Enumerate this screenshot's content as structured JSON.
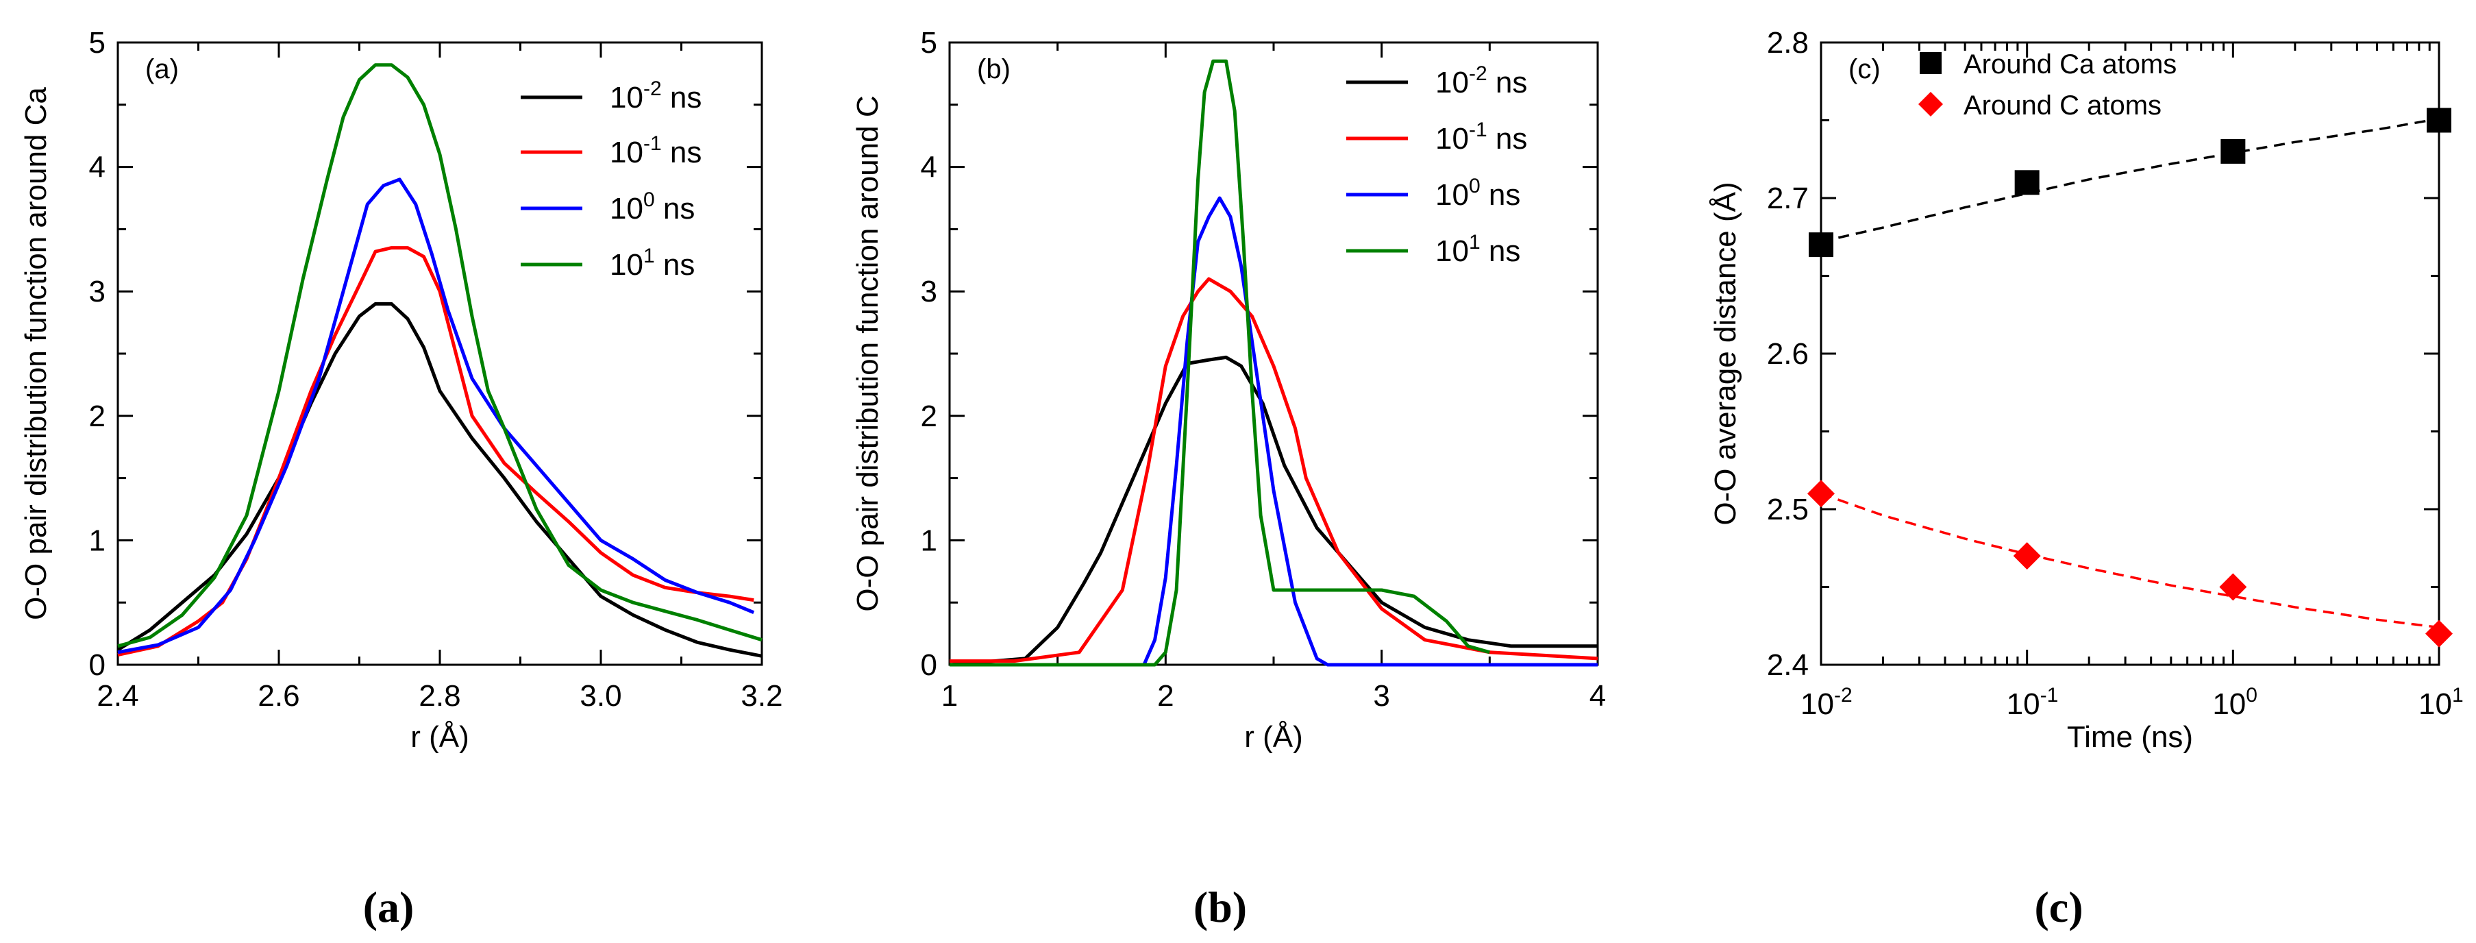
{
  "chart_data": [
    {
      "type": "line",
      "panel_label": "(a)",
      "caption": "(a)",
      "xlabel": "r (Å)",
      "ylabel": "O-O pair distribution function around Ca",
      "xlim": [
        2.4,
        3.2
      ],
      "ylim": [
        0,
        5
      ],
      "xticks": [
        2.4,
        2.6,
        2.8,
        3.0,
        3.2
      ],
      "xtick_labels": [
        "2.4",
        "2.6",
        "2.8",
        "3.0",
        "3.2"
      ],
      "yticks": [
        0,
        1,
        2,
        3,
        4,
        5
      ],
      "ytick_labels": [
        "0",
        "1",
        "2",
        "3",
        "4",
        "5"
      ],
      "legend": {
        "position": "top-right"
      },
      "series": [
        {
          "name": "10-2 ns",
          "base": "10",
          "exp": "-2",
          "unit": " ns",
          "color": "#000000",
          "x": [
            2.4,
            2.44,
            2.48,
            2.52,
            2.56,
            2.6,
            2.64,
            2.67,
            2.7,
            2.72,
            2.74,
            2.76,
            2.78,
            2.8,
            2.84,
            2.88,
            2.92,
            2.96,
            3.0,
            3.04,
            3.08,
            3.12,
            3.16,
            3.2
          ],
          "y": [
            0.12,
            0.28,
            0.5,
            0.72,
            1.05,
            1.5,
            2.1,
            2.5,
            2.8,
            2.9,
            2.9,
            2.78,
            2.55,
            2.2,
            1.82,
            1.5,
            1.15,
            0.85,
            0.55,
            0.4,
            0.28,
            0.18,
            0.12,
            0.07
          ]
        },
        {
          "name": "10-1 ns",
          "base": "10",
          "exp": "-1",
          "unit": " ns",
          "color": "#ff0000",
          "x": [
            2.4,
            2.45,
            2.5,
            2.53,
            2.56,
            2.6,
            2.64,
            2.67,
            2.7,
            2.72,
            2.74,
            2.76,
            2.78,
            2.8,
            2.82,
            2.84,
            2.88,
            2.92,
            2.96,
            3.0,
            3.04,
            3.08,
            3.12,
            3.16,
            3.19
          ],
          "y": [
            0.08,
            0.15,
            0.35,
            0.5,
            0.85,
            1.5,
            2.2,
            2.65,
            3.05,
            3.32,
            3.35,
            3.35,
            3.28,
            3.0,
            2.5,
            2.0,
            1.62,
            1.38,
            1.15,
            0.9,
            0.72,
            0.62,
            0.58,
            0.55,
            0.52
          ]
        },
        {
          "name": "100 ns",
          "base": "10",
          "exp": "0",
          "unit": " ns",
          "color": "#0000ff",
          "x": [
            2.4,
            2.45,
            2.5,
            2.54,
            2.57,
            2.61,
            2.65,
            2.68,
            2.71,
            2.73,
            2.75,
            2.77,
            2.79,
            2.81,
            2.84,
            2.88,
            2.92,
            2.96,
            3.0,
            3.04,
            3.08,
            3.12,
            3.16,
            3.19
          ],
          "y": [
            0.1,
            0.16,
            0.3,
            0.6,
            1.0,
            1.6,
            2.3,
            3.0,
            3.7,
            3.85,
            3.9,
            3.7,
            3.3,
            2.85,
            2.3,
            1.9,
            1.6,
            1.3,
            1.0,
            0.85,
            0.68,
            0.58,
            0.5,
            0.42
          ]
        },
        {
          "name": "101 ns",
          "base": "10",
          "exp": "1",
          "unit": " ns",
          "color": "#008000",
          "x": [
            2.4,
            2.44,
            2.48,
            2.52,
            2.56,
            2.6,
            2.63,
            2.66,
            2.68,
            2.7,
            2.72,
            2.74,
            2.76,
            2.78,
            2.8,
            2.82,
            2.84,
            2.86,
            2.88,
            2.92,
            2.96,
            3.0,
            3.04,
            3.08,
            3.12,
            3.16,
            3.2
          ],
          "y": [
            0.15,
            0.22,
            0.4,
            0.7,
            1.2,
            2.2,
            3.1,
            3.9,
            4.4,
            4.7,
            4.82,
            4.82,
            4.72,
            4.5,
            4.1,
            3.5,
            2.8,
            2.2,
            1.9,
            1.25,
            0.8,
            0.6,
            0.5,
            0.43,
            0.36,
            0.28,
            0.2
          ]
        }
      ]
    },
    {
      "type": "line",
      "panel_label": "(b)",
      "caption": "(b)",
      "xlabel": "r (Å)",
      "ylabel": "O-O pair distribution function around C",
      "xlim": [
        1,
        4
      ],
      "ylim": [
        0,
        5
      ],
      "xticks": [
        1,
        2,
        3,
        4
      ],
      "xtick_labels": [
        "1",
        "2",
        "3",
        "4"
      ],
      "yticks": [
        0,
        1,
        2,
        3,
        4,
        5
      ],
      "ytick_labels": [
        "0",
        "1",
        "2",
        "3",
        "4",
        "5"
      ],
      "legend": {
        "position": "top-right"
      },
      "series": [
        {
          "name": "10-2 ns",
          "base": "10",
          "exp": "-2",
          "unit": " ns",
          "color": "#000000",
          "x": [
            1.0,
            1.35,
            1.5,
            1.62,
            1.7,
            1.8,
            1.9,
            2.0,
            2.1,
            2.2,
            2.28,
            2.35,
            2.45,
            2.55,
            2.7,
            2.85,
            3.0,
            3.2,
            3.4,
            3.6,
            4.0
          ],
          "y": [
            0.0,
            0.05,
            0.3,
            0.65,
            0.9,
            1.3,
            1.7,
            2.1,
            2.42,
            2.45,
            2.47,
            2.4,
            2.1,
            1.6,
            1.1,
            0.8,
            0.5,
            0.3,
            0.2,
            0.15,
            0.15
          ]
        },
        {
          "name": "10-1 ns",
          "base": "10",
          "exp": "-1",
          "unit": " ns",
          "color": "#ff0000",
          "x": [
            1.0,
            1.3,
            1.6,
            1.8,
            1.92,
            2.0,
            2.08,
            2.15,
            2.2,
            2.3,
            2.4,
            2.5,
            2.6,
            2.65,
            2.8,
            3.0,
            3.2,
            3.5,
            4.0
          ],
          "y": [
            0.03,
            0.03,
            0.1,
            0.6,
            1.6,
            2.4,
            2.8,
            3.0,
            3.1,
            3.0,
            2.8,
            2.4,
            1.9,
            1.5,
            0.9,
            0.45,
            0.2,
            0.1,
            0.05
          ]
        },
        {
          "name": "100 ns",
          "base": "10",
          "exp": "0",
          "unit": " ns",
          "color": "#0000ff",
          "x": [
            1.0,
            1.9,
            1.95,
            2.0,
            2.05,
            2.1,
            2.15,
            2.2,
            2.25,
            2.3,
            2.35,
            2.4,
            2.5,
            2.6,
            2.7,
            2.75,
            4.0
          ],
          "y": [
            0.0,
            0.0,
            0.2,
            0.7,
            1.6,
            2.6,
            3.4,
            3.6,
            3.75,
            3.6,
            3.2,
            2.6,
            1.4,
            0.5,
            0.05,
            0.0,
            0.0
          ]
        },
        {
          "name": "101 ns",
          "base": "10",
          "exp": "1",
          "unit": " ns",
          "color": "#008000",
          "x": [
            1.0,
            1.95,
            2.0,
            2.05,
            2.1,
            2.15,
            2.18,
            2.22,
            2.28,
            2.32,
            2.36,
            2.4,
            2.44,
            2.5,
            2.6,
            2.8,
            3.0,
            3.15,
            3.3,
            3.4,
            3.5
          ],
          "y": [
            0.0,
            0.0,
            0.1,
            0.6,
            2.2,
            3.9,
            4.6,
            4.85,
            4.85,
            4.45,
            3.4,
            2.2,
            1.2,
            0.6,
            0.6,
            0.6,
            0.6,
            0.55,
            0.35,
            0.15,
            0.1
          ]
        }
      ]
    },
    {
      "type": "scatter",
      "panel_label": "(c)",
      "caption": "(c)",
      "xlabel": "Time (ns)",
      "ylabel": "O-O average distance (Å)",
      "xscale": "log",
      "xlim": [
        0.01,
        10
      ],
      "ylim": [
        2.4,
        2.8
      ],
      "xticks": [
        0.01,
        0.1,
        1,
        10
      ],
      "xtick_base": "10",
      "xtick_exps": [
        "-2",
        "-1",
        "0",
        "1"
      ],
      "yticks": [
        2.4,
        2.5,
        2.6,
        2.7,
        2.8
      ],
      "ytick_labels": [
        "2.4",
        "2.5",
        "2.6",
        "2.7",
        "2.8"
      ],
      "legend": {
        "position": "top-left"
      },
      "series": [
        {
          "name": "Around Ca atoms",
          "color": "#000000",
          "marker": "square",
          "x": [
            0.01,
            0.1,
            1,
            10
          ],
          "y": [
            2.67,
            2.71,
            2.73,
            2.75
          ],
          "fit": {
            "x": [
              0.01,
              0.02,
              0.05,
              0.1,
              0.2,
              0.5,
              1,
              2,
              5,
              10
            ],
            "y": [
              2.672,
              2.681,
              2.694,
              2.703,
              2.712,
              2.722,
              2.729,
              2.736,
              2.744,
              2.751
            ]
          }
        },
        {
          "name": "Around C atoms",
          "color": "#ff0000",
          "marker": "diamond",
          "x": [
            0.01,
            0.1,
            1,
            10
          ],
          "y": [
            2.51,
            2.47,
            2.45,
            2.42
          ],
          "fit": {
            "x": [
              0.01,
              0.02,
              0.05,
              0.1,
              0.2,
              0.5,
              1,
              2,
              5,
              10
            ],
            "y": [
              2.51,
              2.496,
              2.481,
              2.471,
              2.462,
              2.451,
              2.444,
              2.437,
              2.429,
              2.424
            ]
          }
        }
      ]
    }
  ]
}
